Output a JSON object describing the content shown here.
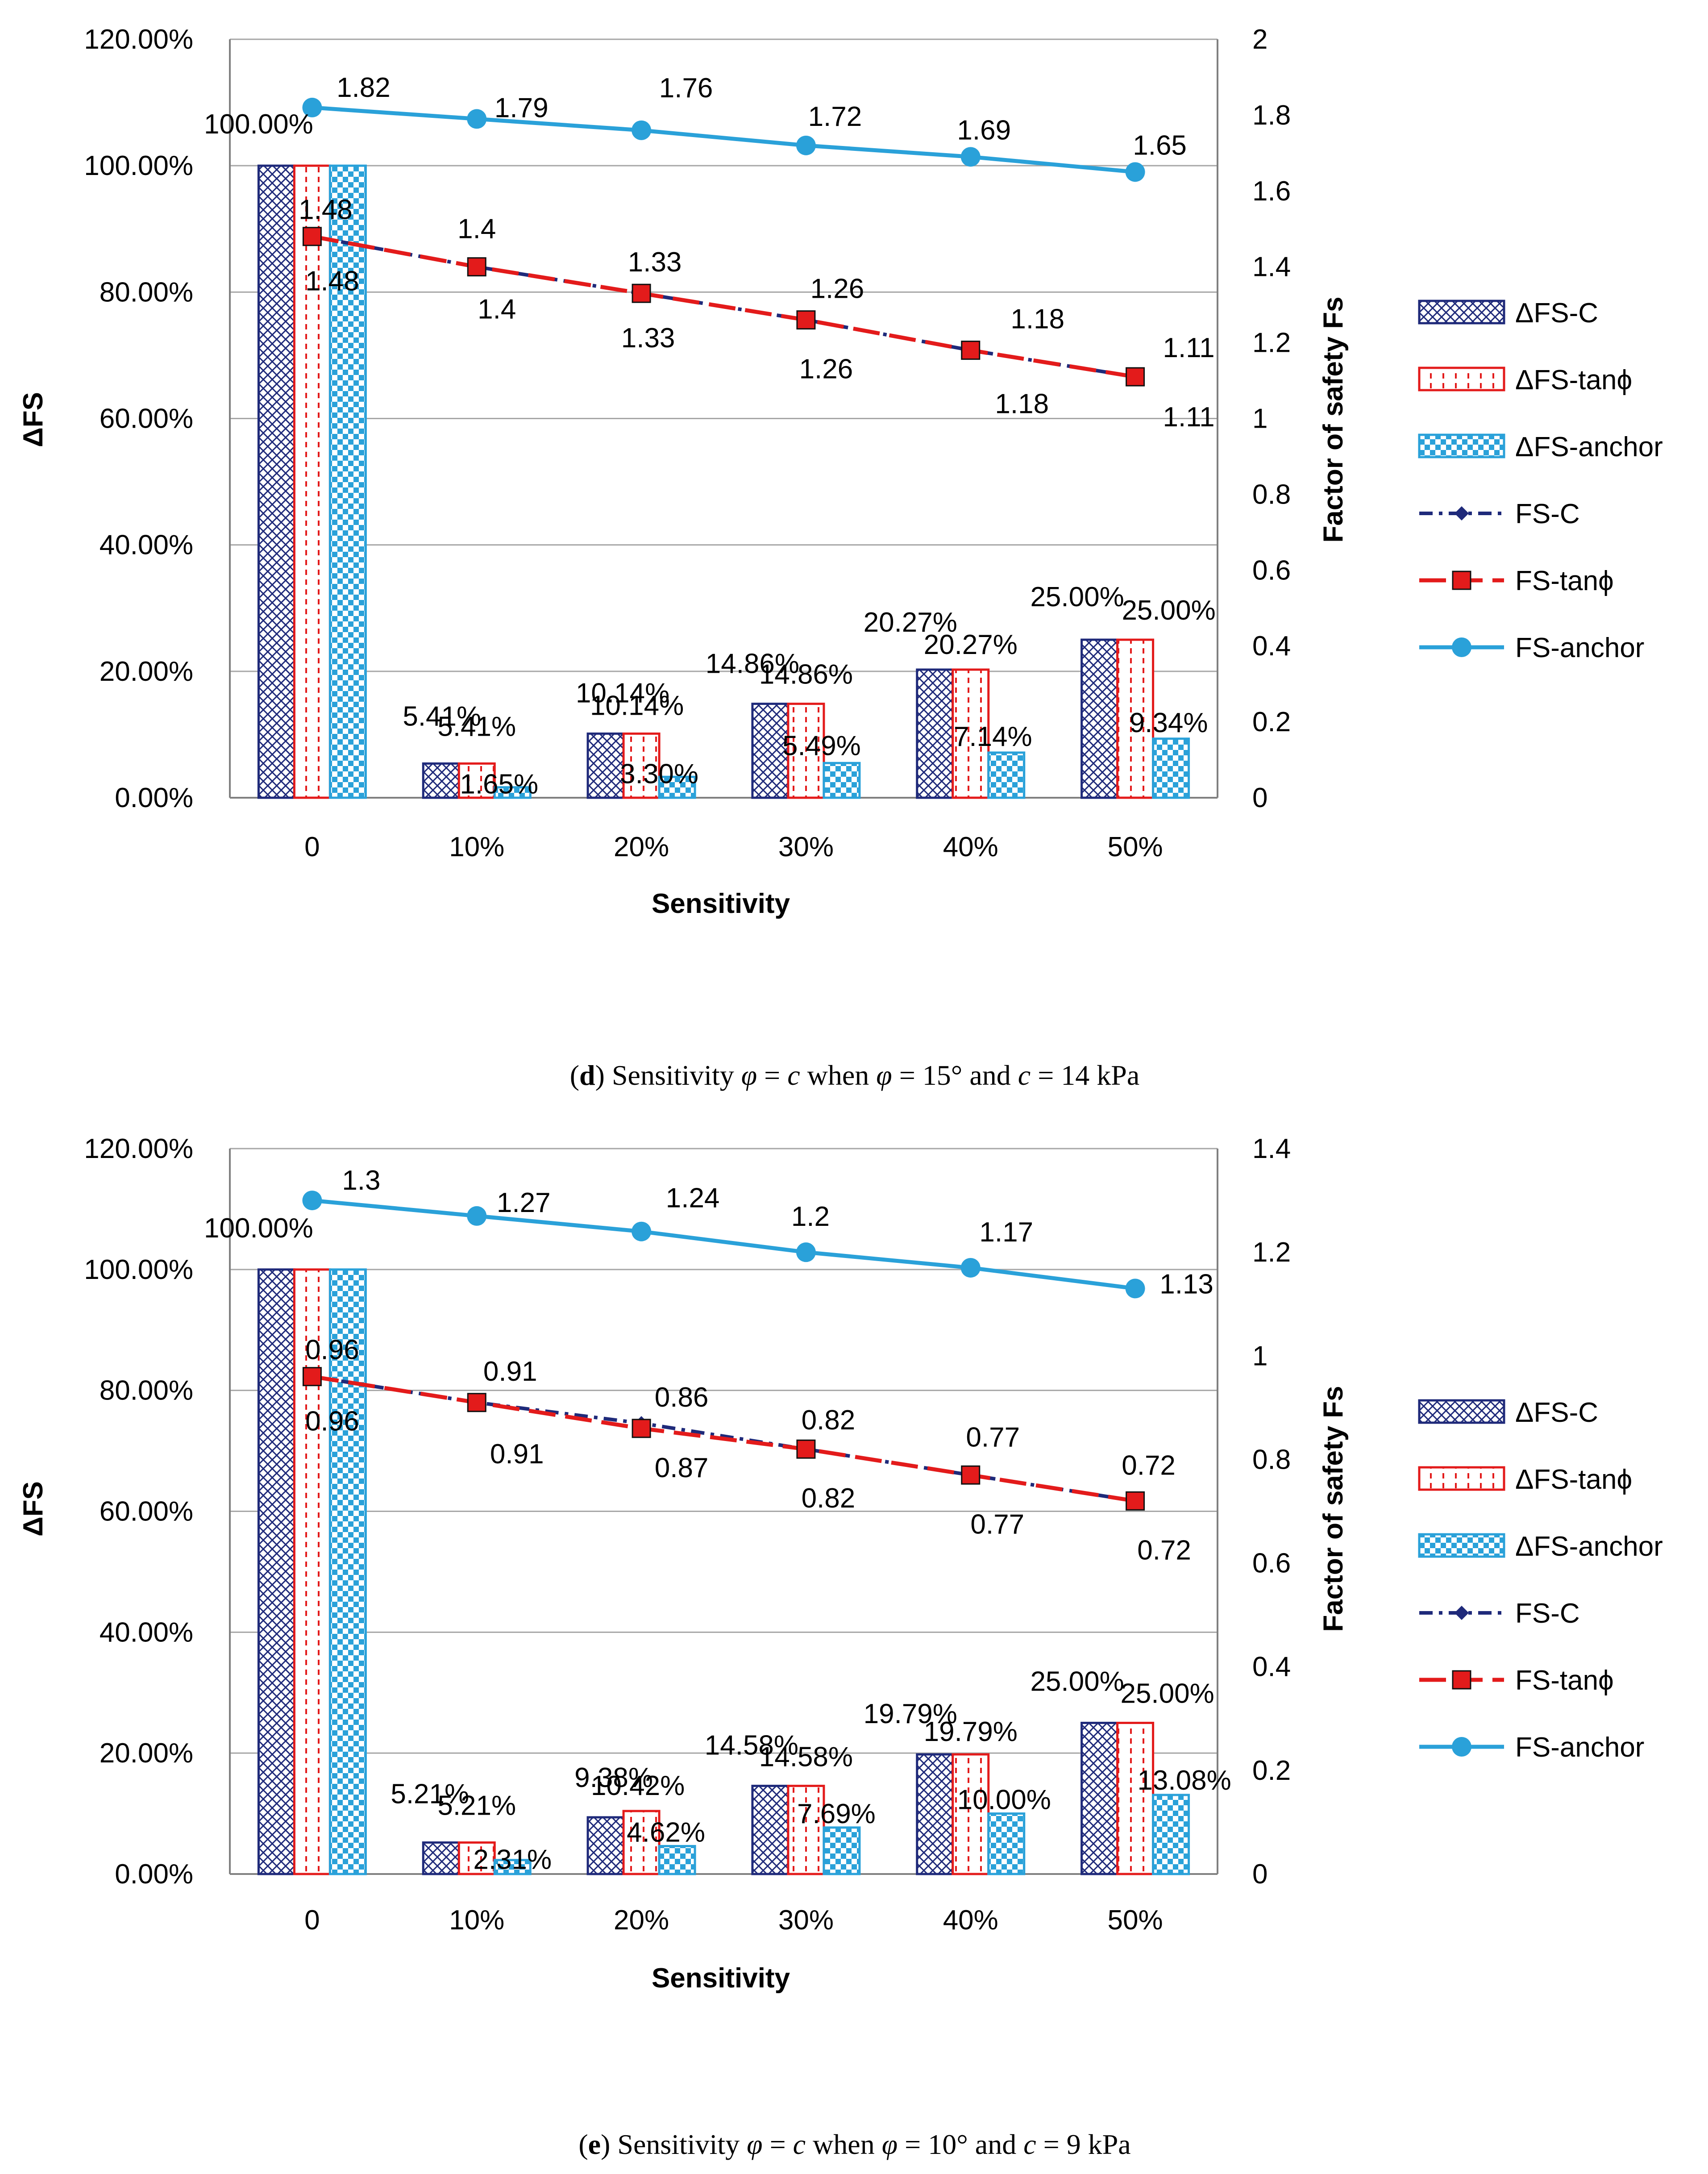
{
  "colors": {
    "navy": "#1f2a7a",
    "red": "#e31b1b",
    "blue": "#2aa1d9",
    "grid": "#a6a6a6",
    "axis": "#808080"
  },
  "legend": [
    "ΔFS-C",
    "ΔFS-tanϕ",
    "ΔFS-anchor",
    "FS-C",
    "FS-tanϕ",
    "FS-anchor"
  ],
  "chart_data": [
    {
      "type": "bar+line",
      "caption": {
        "letter": "d",
        "prefix": " Sensitivity ",
        "phi1": "φ",
        "eq1": " = ",
        "c1": "c",
        "when": " when ",
        "phi2": "φ",
        "deg": " = 15° and ",
        "c2": "c",
        "eq2": " = 14 kPa"
      },
      "xlabel": "Sensitivity",
      "ylabel": "ΔFS",
      "y2label": "Factor of safety Fs",
      "categories": [
        "0",
        "10%",
        "20%",
        "30%",
        "40%",
        "50%"
      ],
      "ylim": [
        0,
        1.2
      ],
      "yticks": [
        "0.00%",
        "20.00%",
        "40.00%",
        "60.00%",
        "80.00%",
        "100.00%",
        "120.00%"
      ],
      "y2lim": [
        0,
        2
      ],
      "y2ticks": [
        "0",
        "0.2",
        "0.4",
        "0.6",
        "0.8",
        "1",
        "1.2",
        "1.4",
        "1.6",
        "1.8",
        "2"
      ],
      "bar_series": [
        {
          "name": "ΔFS-C",
          "values": [
            1.0,
            0.0541,
            0.1014,
            0.1486,
            0.2027,
            0.25
          ],
          "labels": [
            "100.00%",
            "5.41%",
            "10.14%",
            "14.86%",
            "20.27%",
            "25.00%"
          ]
        },
        {
          "name": "ΔFS-tanϕ",
          "values": [
            1.0,
            0.0541,
            0.1014,
            0.1486,
            0.2027,
            0.25
          ],
          "labels": [
            "",
            "5.41%",
            "10.14%",
            "14.86%",
            "20.27%",
            "25.00%"
          ]
        },
        {
          "name": "ΔFS-anchor",
          "values": [
            1.0,
            0.0165,
            0.033,
            0.0549,
            0.0714,
            0.0934
          ],
          "labels": [
            "",
            "1.65%",
            "3.30%",
            "5.49%",
            "7.14%",
            "9.34%"
          ]
        }
      ],
      "line_series": [
        {
          "name": "FS-C",
          "values": [
            1.48,
            1.4,
            1.33,
            1.26,
            1.18,
            1.11
          ],
          "labels": [
            "1.48",
            "1.4",
            "1.33",
            "1.26",
            "1.18",
            "1.11"
          ]
        },
        {
          "name": "FS-tanϕ",
          "values": [
            1.48,
            1.4,
            1.33,
            1.26,
            1.18,
            1.11
          ],
          "labels": [
            "1.48",
            "1.4",
            "1.33",
            "1.26",
            "1.18",
            "1.11"
          ]
        },
        {
          "name": "FS-anchor",
          "values": [
            1.82,
            1.79,
            1.76,
            1.72,
            1.69,
            1.65
          ],
          "labels": [
            "1.82",
            "1.79",
            "1.76",
            "1.72",
            "1.69",
            "1.65"
          ]
        }
      ]
    },
    {
      "type": "bar+line",
      "caption": {
        "letter": "e",
        "prefix": " Sensitivity ",
        "phi1": "φ",
        "eq1": " = ",
        "c1": "c",
        "when": " when ",
        "phi2": "φ",
        "deg": " = 10° and ",
        "c2": "c",
        "eq2": " = 9 kPa"
      },
      "xlabel": "Sensitivity",
      "ylabel": "ΔFS",
      "y2label": "Factor of safety Fs",
      "categories": [
        "0",
        "10%",
        "20%",
        "30%",
        "40%",
        "50%"
      ],
      "ylim": [
        0,
        1.2
      ],
      "yticks": [
        "0.00%",
        "20.00%",
        "40.00%",
        "60.00%",
        "80.00%",
        "100.00%",
        "120.00%"
      ],
      "y2lim": [
        0,
        1.4
      ],
      "y2ticks": [
        "0",
        "0.2",
        "0.4",
        "0.6",
        "0.8",
        "1",
        "1.2",
        "1.4"
      ],
      "bar_series": [
        {
          "name": "ΔFS-C",
          "values": [
            1.0,
            0.0521,
            0.0938,
            0.1458,
            0.1979,
            0.25
          ],
          "labels": [
            "100.00%",
            "5.21%",
            "9.38%",
            "14.58%",
            "19.79%",
            "25.00%"
          ]
        },
        {
          "name": "ΔFS-tanϕ",
          "values": [
            1.0,
            0.0521,
            0.1042,
            0.1458,
            0.1979,
            0.25
          ],
          "labels": [
            "",
            "5.21%",
            "10.42%",
            "14.58%",
            "19.79%",
            "25.00%"
          ]
        },
        {
          "name": "ΔFS-anchor",
          "values": [
            1.0,
            0.0231,
            0.0462,
            0.0769,
            0.1,
            0.1308
          ],
          "labels": [
            "",
            "2.31%",
            "4.62%",
            "7.69%",
            "10.00%",
            "13.08%"
          ]
        }
      ],
      "line_series": [
        {
          "name": "FS-C",
          "values": [
            0.96,
            0.91,
            0.87,
            0.82,
            0.77,
            0.72
          ],
          "labels": [
            "0.96",
            "0.91",
            "0.87",
            "0.82",
            "0.77",
            "0.72"
          ]
        },
        {
          "name": "FS-tanϕ",
          "values": [
            0.96,
            0.91,
            0.86,
            0.82,
            0.77,
            0.72
          ],
          "labels": [
            "0.96",
            "0.91",
            "0.86",
            "0.82",
            "0.77",
            "0.72"
          ]
        },
        {
          "name": "FS-anchor",
          "values": [
            1.3,
            1.27,
            1.24,
            1.2,
            1.17,
            1.13
          ],
          "labels": [
            "1.3",
            "1.27",
            "1.24",
            "1.2",
            "1.17",
            "1.13"
          ]
        }
      ]
    }
  ]
}
